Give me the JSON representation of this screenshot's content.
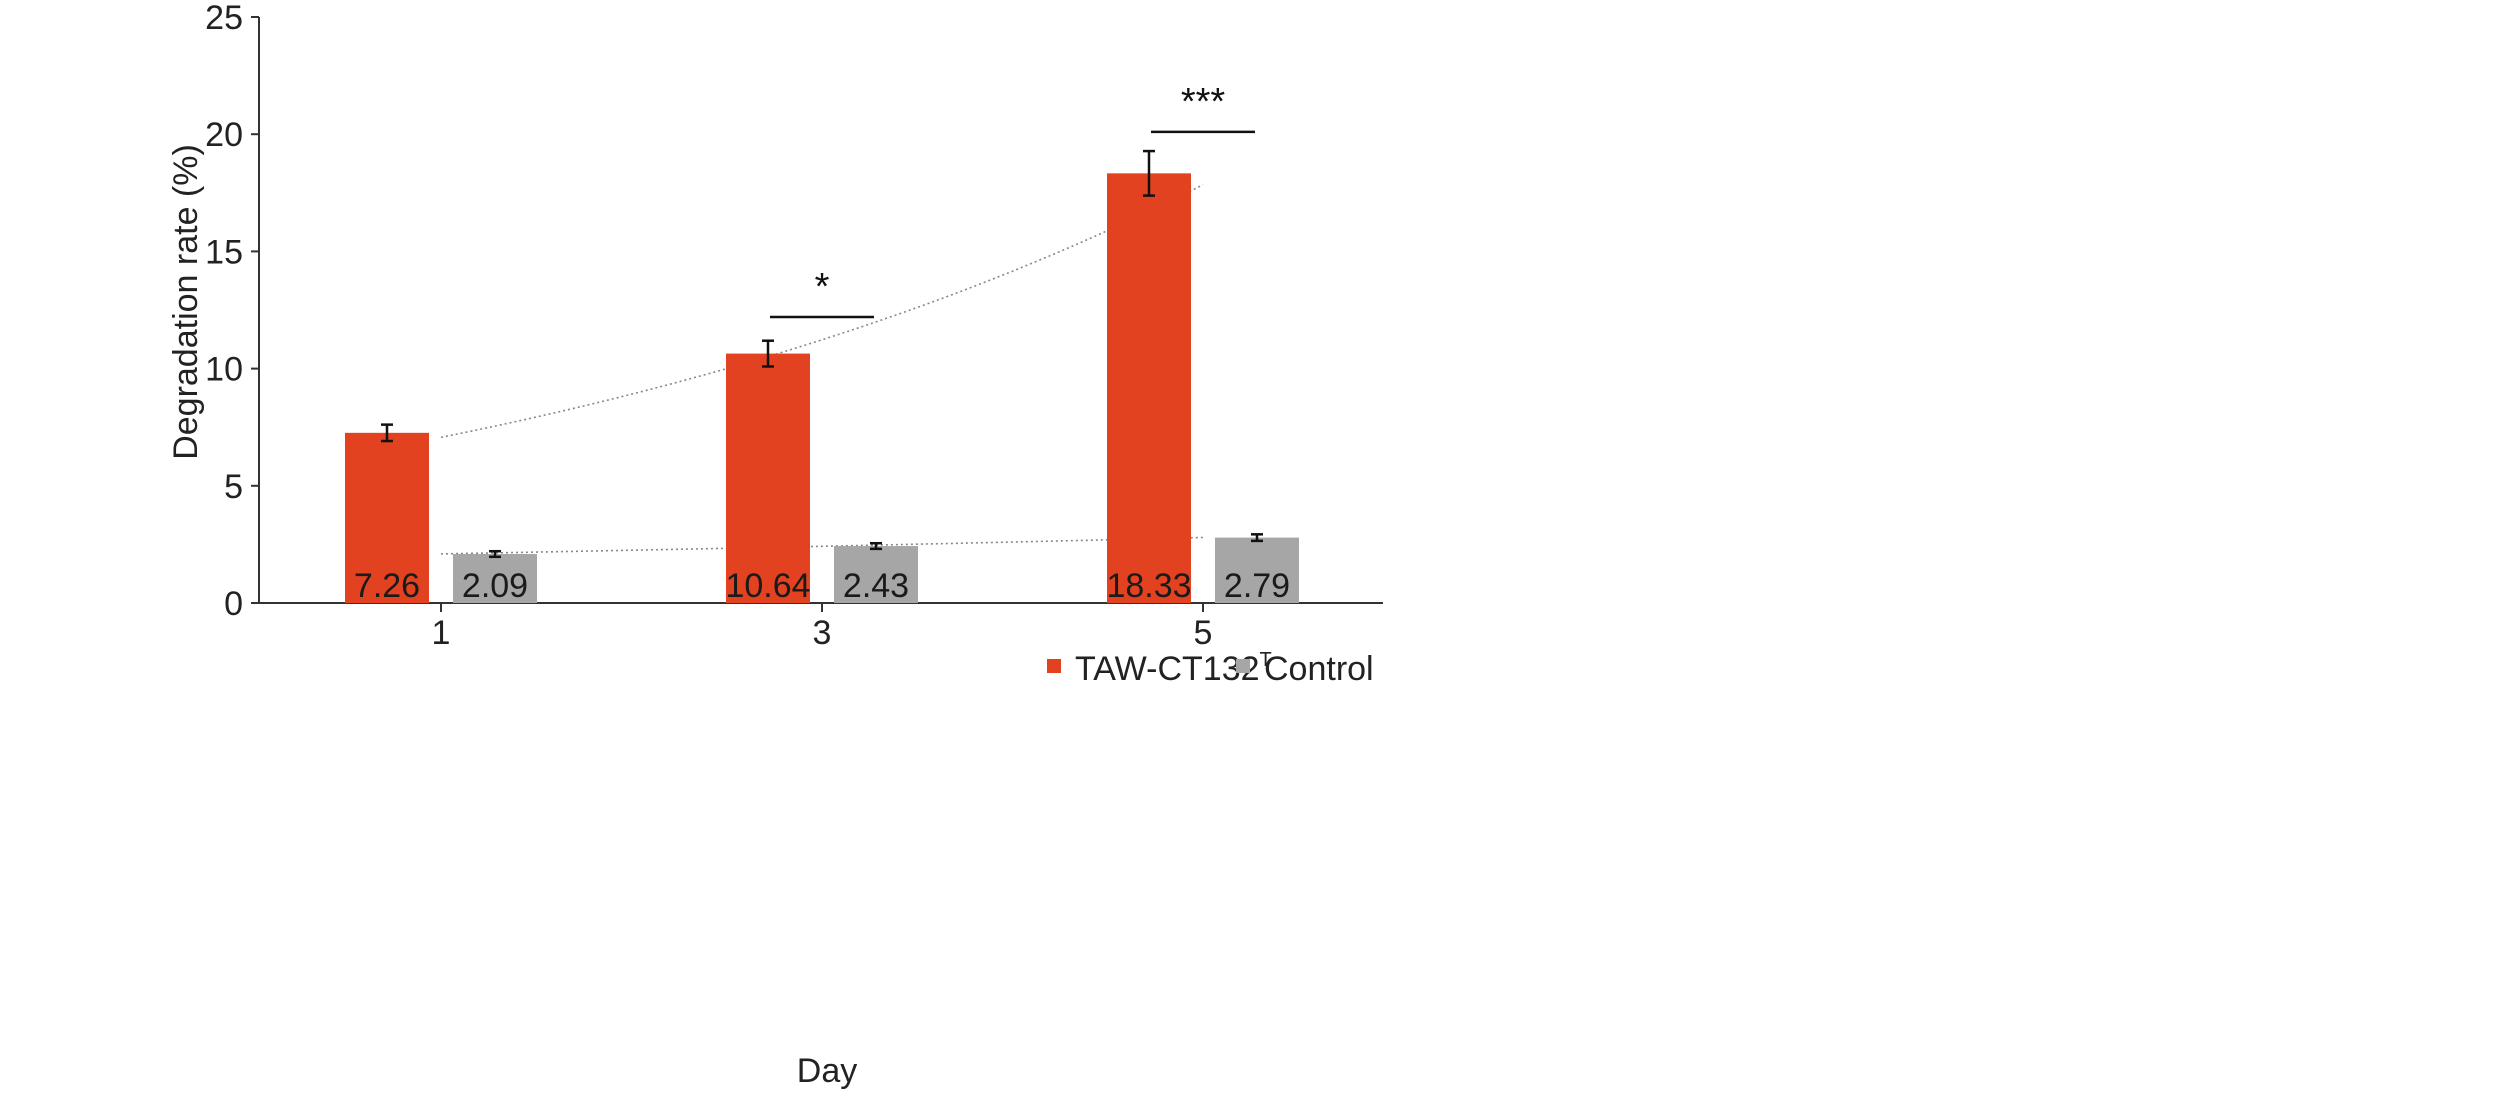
{
  "chart_data": {
    "type": "bar",
    "categories": [
      "1",
      "3",
      "5"
    ],
    "xlabel": "Day",
    "ylabel": "Degradation rate (%)",
    "ylim": [
      0,
      25
    ],
    "yticks": [
      0,
      5,
      10,
      15,
      20,
      25
    ],
    "grid": false,
    "legend_position": "bottom-right",
    "series": [
      {
        "name": "TAW-CT132",
        "name_superscript": "T",
        "color": "#e34220",
        "values": [
          7.26,
          10.64,
          18.33
        ],
        "errors": [
          0.35,
          0.55,
          0.95
        ],
        "labels": [
          "7.26",
          "10.64",
          "18.33"
        ]
      },
      {
        "name": "Control",
        "color": "#a6a6a6",
        "values": [
          2.09,
          2.43,
          2.79
        ],
        "errors": [
          0.12,
          0.12,
          0.14
        ],
        "labels": [
          "2.09",
          "2.43",
          "2.79"
        ]
      }
    ],
    "trendlines": [
      {
        "series": 0,
        "kind": "dotted"
      },
      {
        "series": 1,
        "kind": "dotted"
      }
    ],
    "annotations": [
      {
        "category_index": 1,
        "text": "*",
        "y": 12.2
      },
      {
        "category_index": 2,
        "text": "***",
        "y": 20.1
      }
    ]
  }
}
